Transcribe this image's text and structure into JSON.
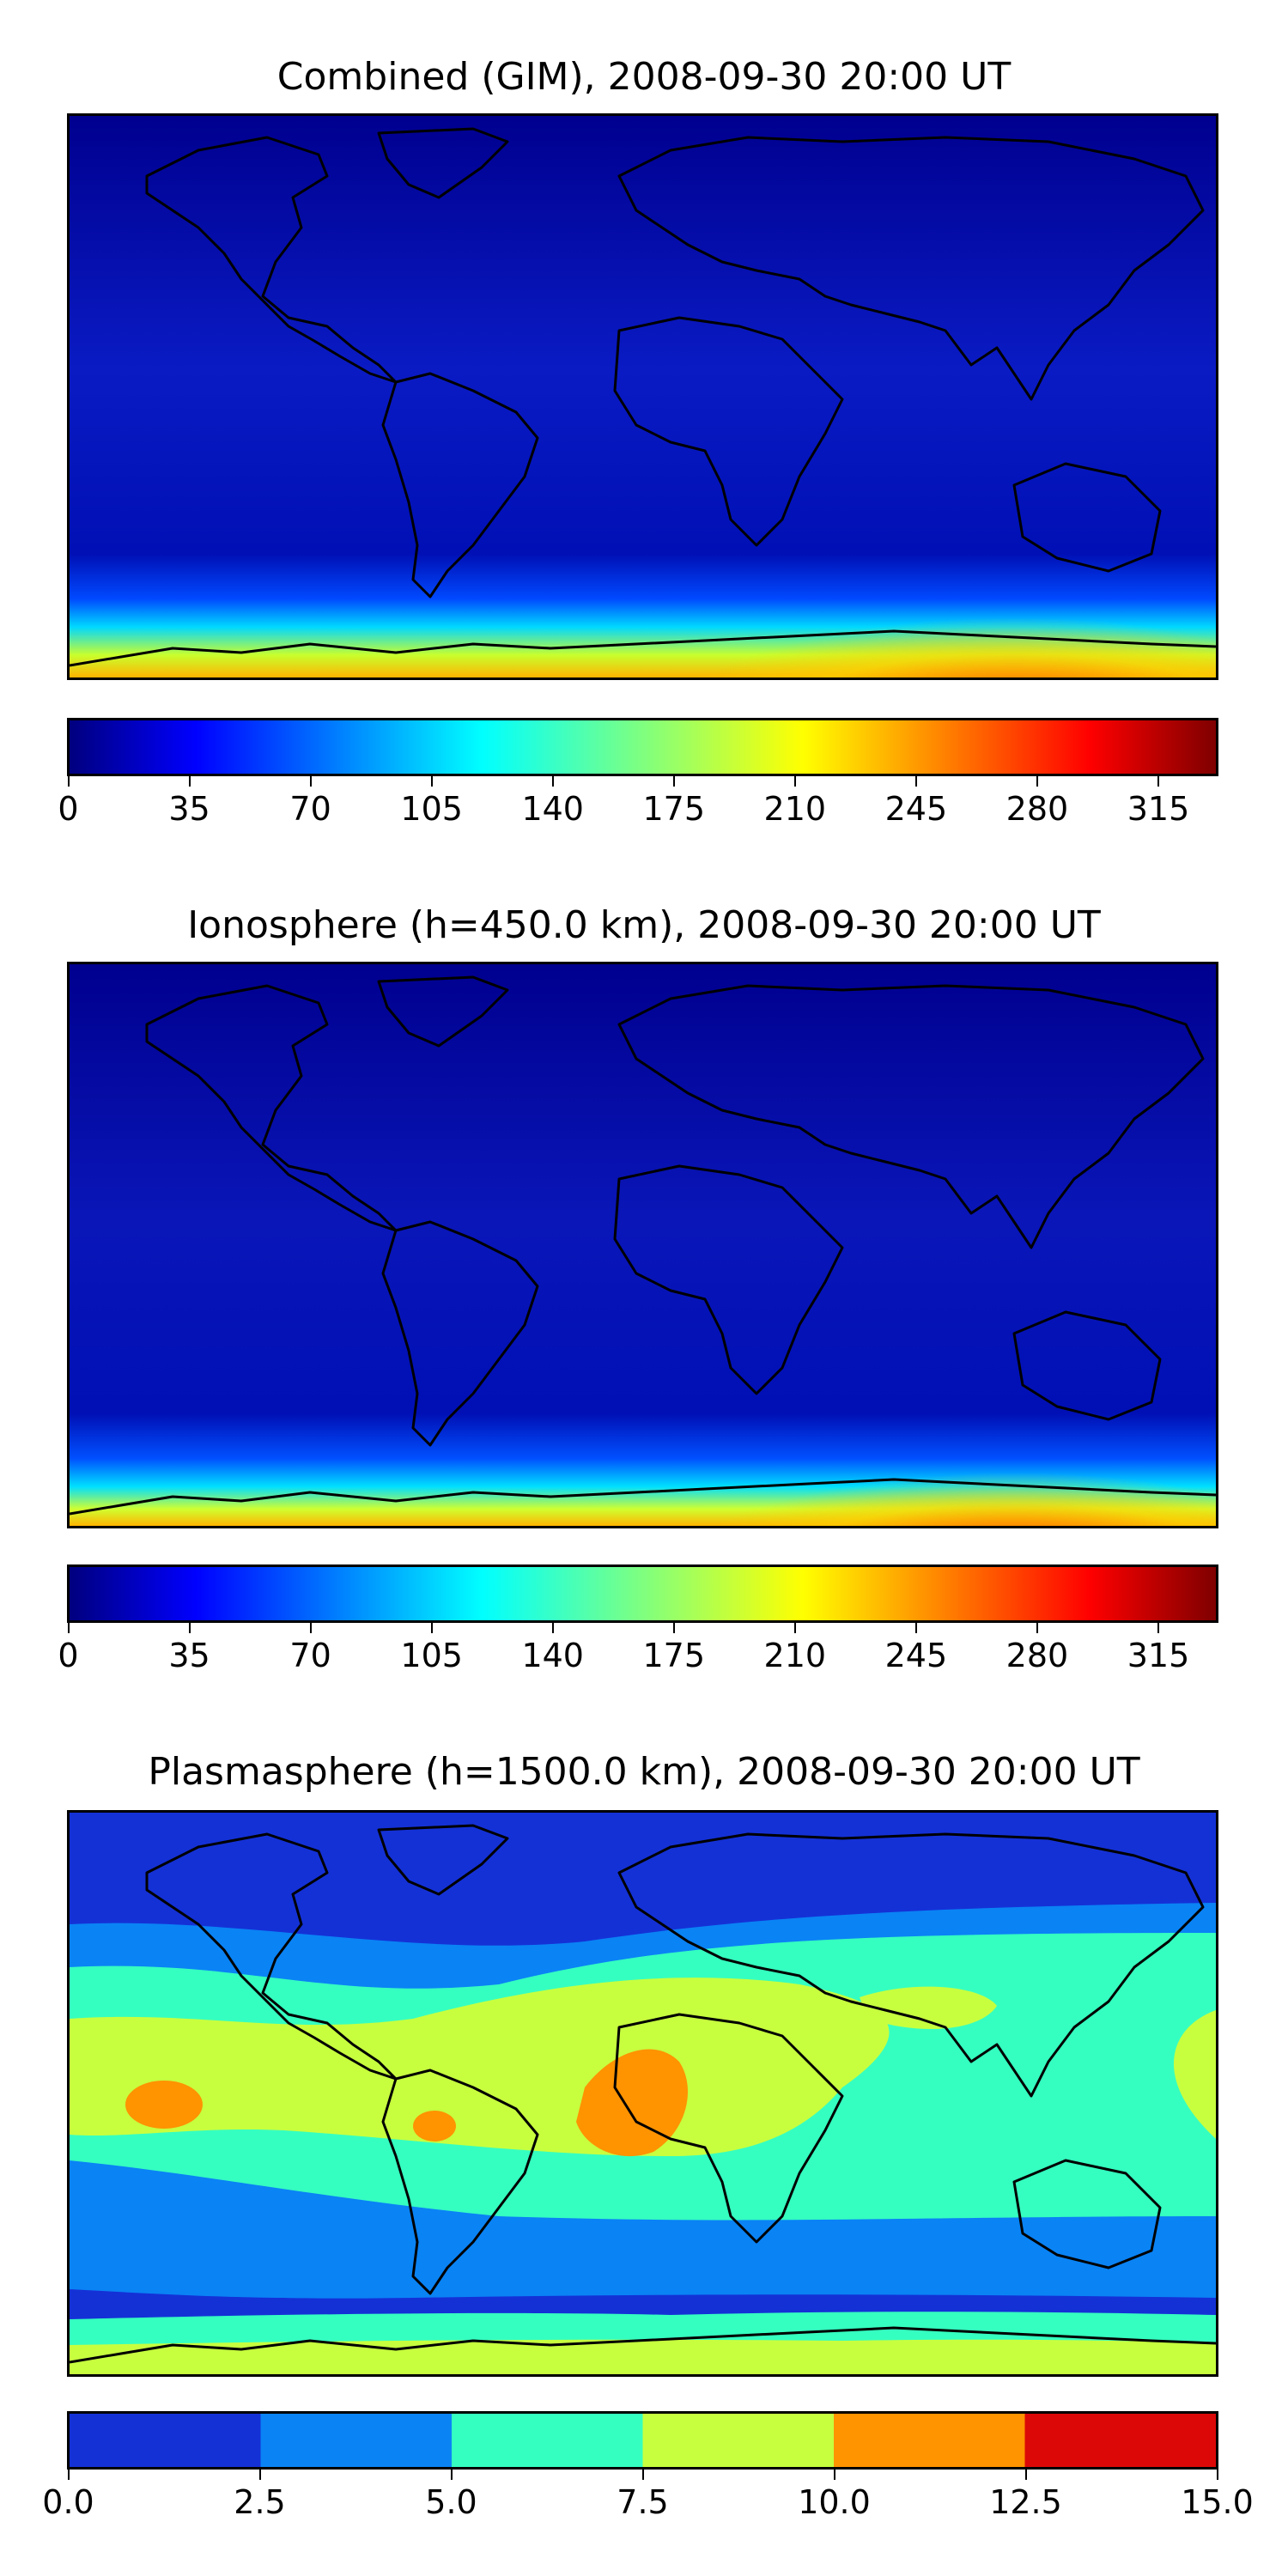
{
  "maps": [
    {
      "title": "Combined (GIM), 2008-09-30 20:00 UT",
      "colorbar": {
        "type": "continuous",
        "range": [
          0,
          332
        ],
        "ticks": [
          "0",
          "35",
          "70",
          "105",
          "140",
          "175",
          "210",
          "245",
          "280",
          "315"
        ],
        "tick_values": [
          0,
          35,
          70,
          105,
          140,
          175,
          210,
          245,
          280,
          315
        ],
        "colormap": "jet"
      },
      "field": "high-values-south-polar"
    },
    {
      "title": "Ionosphere  (h=450.0 km), 2008-09-30 20:00 UT",
      "colorbar": {
        "type": "continuous",
        "range": [
          0,
          332
        ],
        "ticks": [
          "0",
          "35",
          "70",
          "105",
          "140",
          "175",
          "210",
          "245",
          "280",
          "315"
        ],
        "tick_values": [
          0,
          35,
          70,
          105,
          140,
          175,
          210,
          245,
          280,
          315
        ],
        "colormap": "jet"
      },
      "field": "high-values-south-polar"
    },
    {
      "title": "Plasmasphere (h=1500.0 km), 2008-09-30 20:00 UT",
      "colorbar": {
        "type": "discrete",
        "range": [
          0,
          15
        ],
        "ticks": [
          "0.0",
          "2.5",
          "5.0",
          "7.5",
          "10.0",
          "12.5",
          "15.0"
        ],
        "tick_values": [
          0,
          2.5,
          5,
          7.5,
          10,
          12.5,
          15
        ],
        "levels": [
          "#1431d6",
          "#0a83f5",
          "#35ffc0",
          "#c7ff3f",
          "#ff9300",
          "#dc0808"
        ]
      },
      "field": "equatorial-bands"
    }
  ],
  "colors": {
    "background_low": "#00008f",
    "jet_stops": [
      "#00007f",
      "#0000ff",
      "#007fff",
      "#00ffff",
      "#7fff7f",
      "#ffff00",
      "#ff7f00",
      "#ff0000",
      "#7f0000"
    ]
  }
}
